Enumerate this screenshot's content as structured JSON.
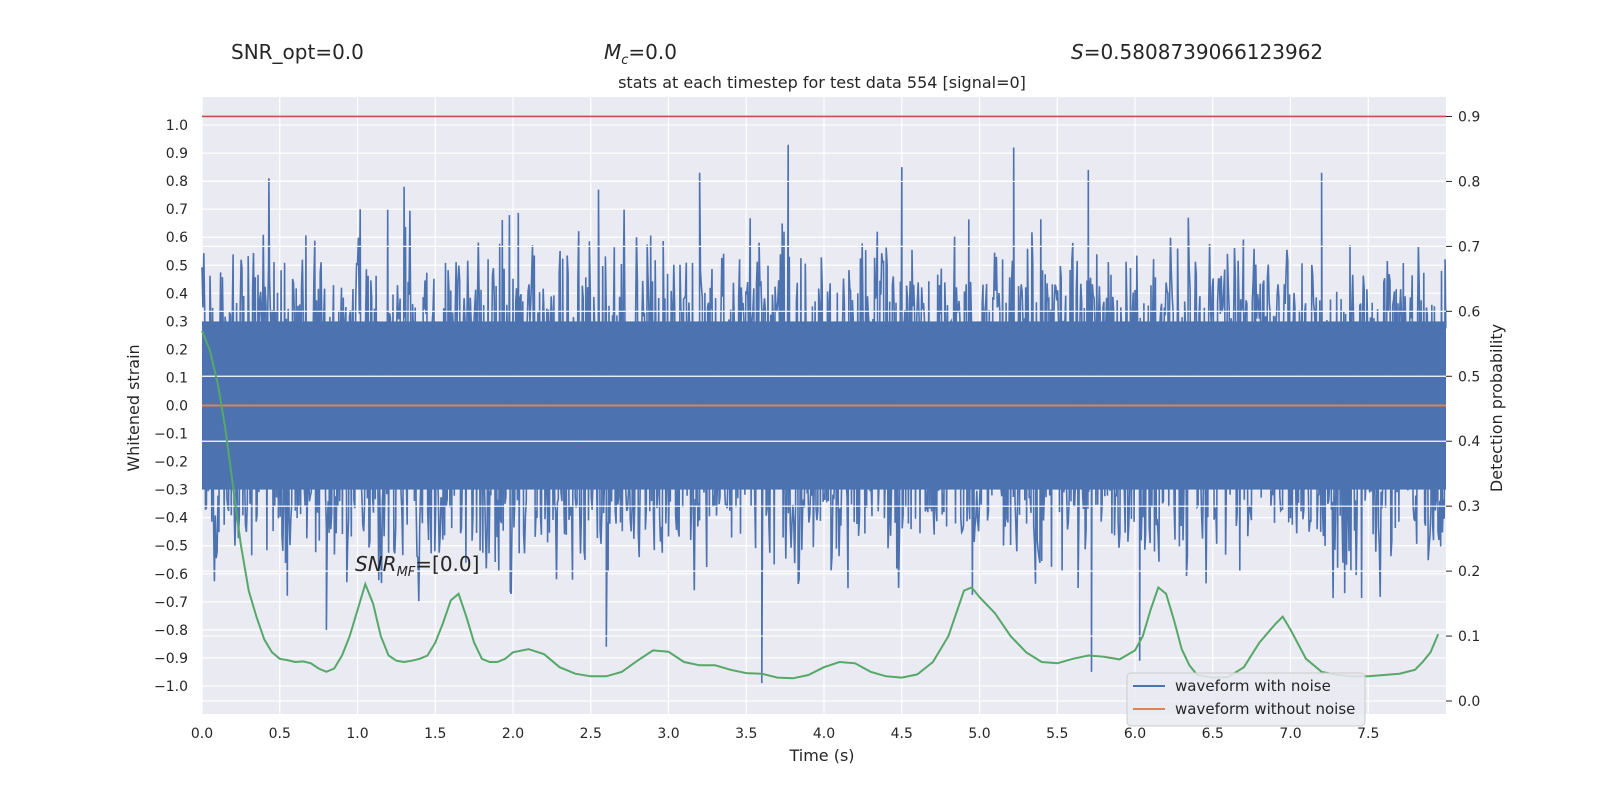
{
  "header": {
    "snr_opt": "SNR_opt=0.0",
    "mc_symbol": "M",
    "mc_sub": "c",
    "mc_value": "=0.0",
    "s_symbol": "S",
    "s_value": "=0.5808739066123962",
    "snr_mf_symbol": "SNR",
    "snr_mf_sub": "MF",
    "snr_mf_value": "=[0.0]"
  },
  "chart_data": {
    "type": "line",
    "title": "stats at each timestep for test data 554 [signal=0]",
    "xlabel": "Time (s)",
    "ylabel": "Whitened strain",
    "y2label": "Detection probability",
    "xlim": [
      0.0,
      8.0
    ],
    "ylim": [
      -1.1,
      1.1
    ],
    "y2lim": [
      -0.02,
      0.93
    ],
    "xticks": [
      "0.0",
      "0.5",
      "1.0",
      "1.5",
      "2.0",
      "2.5",
      "3.0",
      "3.5",
      "4.0",
      "4.5",
      "5.0",
      "5.5",
      "6.0",
      "6.5",
      "7.0",
      "7.5"
    ],
    "yticks": [
      "1.0",
      "0.9",
      "0.8",
      "0.7",
      "0.6",
      "0.5",
      "0.4",
      "0.3",
      "0.2",
      "0.1",
      "0.0",
      "-0.1",
      "-0.2",
      "-0.3",
      "-0.4",
      "-0.5",
      "-0.6",
      "-0.7",
      "-0.8",
      "-0.9",
      "-1.0"
    ],
    "y2ticks": [
      "0.9",
      "0.8",
      "0.7",
      "0.6",
      "0.5",
      "0.4",
      "0.3",
      "0.2",
      "0.1",
      "0.0"
    ],
    "grid": true,
    "legend_position": "lower-right",
    "colors": {
      "noise": "#4c72b0",
      "clean": "#dd8452",
      "prob": "#55a868",
      "threshold": "#c44e52",
      "background": "#eaeaf2"
    },
    "series": [
      {
        "name": "waveform with noise",
        "axis": "left",
        "description": "dense noisy strain series filling roughly -0.45 to 0.45 with spikes to about +0.93 and -0.99",
        "peaks": [
          {
            "x": 0.43,
            "y": 0.81
          },
          {
            "x": 1.3,
            "y": 0.78
          },
          {
            "x": 2.55,
            "y": 0.77
          },
          {
            "x": 3.2,
            "y": 0.83
          },
          {
            "x": 3.77,
            "y": 0.93
          },
          {
            "x": 4.5,
            "y": 0.85
          },
          {
            "x": 5.22,
            "y": 0.92
          },
          {
            "x": 5.7,
            "y": 0.84
          },
          {
            "x": 7.2,
            "y": 0.83
          },
          {
            "x": 3.6,
            "y": -0.99
          },
          {
            "x": 5.72,
            "y": -0.95
          },
          {
            "x": 6.03,
            "y": -0.91
          },
          {
            "x": 2.6,
            "y": -0.86
          },
          {
            "x": 0.8,
            "y": -0.8
          }
        ]
      },
      {
        "name": "waveform without noise",
        "axis": "left",
        "x": [
          0.0,
          8.0
        ],
        "y": [
          0.0,
          0.0
        ]
      },
      {
        "name": "",
        "axis": "right",
        "x": [
          0.0,
          0.05,
          0.1,
          0.15,
          0.2,
          0.25,
          0.3,
          0.35,
          0.4,
          0.45,
          0.5,
          0.55,
          0.6,
          0.65,
          0.7,
          0.75,
          0.8,
          0.85,
          0.9,
          0.95,
          1.0,
          1.05,
          1.1,
          1.15,
          1.2,
          1.25,
          1.3,
          1.35,
          1.4,
          1.45,
          1.5,
          1.55,
          1.6,
          1.65,
          1.7,
          1.75,
          1.8,
          1.85,
          1.9,
          1.95,
          2.0,
          2.1,
          2.2,
          2.3,
          2.4,
          2.5,
          2.6,
          2.7,
          2.8,
          2.9,
          3.0,
          3.1,
          3.2,
          3.3,
          3.4,
          3.5,
          3.6,
          3.7,
          3.8,
          3.9,
          4.0,
          4.1,
          4.2,
          4.3,
          4.4,
          4.5,
          4.6,
          4.7,
          4.8,
          4.9,
          4.95,
          5.0,
          5.1,
          5.2,
          5.3,
          5.4,
          5.5,
          5.6,
          5.7,
          5.8,
          5.9,
          6.0,
          6.05,
          6.1,
          6.15,
          6.2,
          6.25,
          6.3,
          6.35,
          6.4,
          6.5,
          6.6,
          6.7,
          6.8,
          6.9,
          6.95,
          7.0,
          7.1,
          7.2,
          7.3,
          7.4,
          7.5,
          7.6,
          7.7,
          7.8,
          7.85,
          7.9,
          7.95
        ],
        "y": [
          0.57,
          0.54,
          0.49,
          0.42,
          0.33,
          0.24,
          0.17,
          0.13,
          0.095,
          0.075,
          0.065,
          0.063,
          0.06,
          0.061,
          0.058,
          0.05,
          0.045,
          0.05,
          0.07,
          0.1,
          0.14,
          0.18,
          0.15,
          0.1,
          0.07,
          0.062,
          0.06,
          0.062,
          0.065,
          0.07,
          0.09,
          0.12,
          0.155,
          0.165,
          0.13,
          0.09,
          0.065,
          0.06,
          0.06,
          0.065,
          0.075,
          0.08,
          0.072,
          0.052,
          0.042,
          0.038,
          0.038,
          0.045,
          0.062,
          0.078,
          0.076,
          0.06,
          0.055,
          0.055,
          0.048,
          0.043,
          0.042,
          0.036,
          0.035,
          0.04,
          0.052,
          0.06,
          0.058,
          0.045,
          0.038,
          0.036,
          0.041,
          0.06,
          0.1,
          0.17,
          0.175,
          0.16,
          0.135,
          0.1,
          0.075,
          0.06,
          0.058,
          0.065,
          0.07,
          0.068,
          0.064,
          0.078,
          0.1,
          0.14,
          0.175,
          0.165,
          0.125,
          0.08,
          0.055,
          0.04,
          0.036,
          0.037,
          0.052,
          0.09,
          0.118,
          0.13,
          0.11,
          0.065,
          0.045,
          0.04,
          0.038,
          0.038,
          0.04,
          0.042,
          0.048,
          0.06,
          0.075,
          0.103
        ]
      }
    ],
    "threshold": {
      "axis": "right",
      "y": 0.9
    }
  }
}
